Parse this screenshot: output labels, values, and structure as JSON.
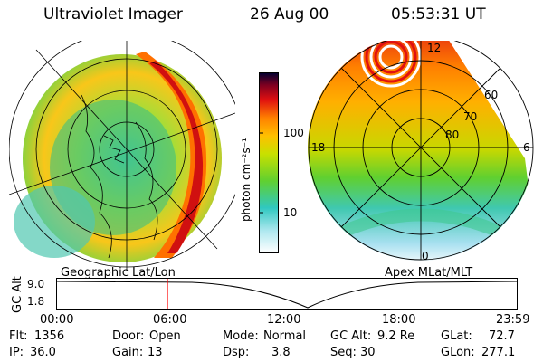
{
  "header": {
    "instrument": "Ultraviolet Imager",
    "date": "26 Aug 00",
    "time": "05:53:31 UT"
  },
  "colorbar": {
    "unit_label": "photon cm⁻²s⁻¹",
    "ticks": [
      "100",
      "10"
    ]
  },
  "panels": {
    "left_label": "Geographic Lat/Lon",
    "right_label": "Apex MLat/MLT",
    "polar_lat_labels": [
      "60",
      "70",
      "80"
    ],
    "polar_mlt_labels": [
      "12",
      "18",
      "6",
      "0"
    ]
  },
  "altitude_plot": {
    "ylabel": "GC Alt",
    "yticks": [
      "9.0",
      "1.8"
    ],
    "xticks": [
      "00:00",
      "06:00",
      "12:00",
      "18:00",
      "23:59"
    ]
  },
  "info": {
    "flt_label": "Flt:",
    "flt_value": "1356",
    "door_label": "Door:",
    "door_value": "Open",
    "mode_label": "Mode:",
    "mode_value": "Normal",
    "gcalt_label": "GC Alt:",
    "gcalt_value": "9.2 Re",
    "glat_label": "GLat:",
    "glat_value": "72.7",
    "ip_label": "IP:",
    "ip_value": "36.0",
    "gain_label": "Gain:",
    "gain_value": "13",
    "dsp_label": "Dsp:",
    "dsp_value": "3.8",
    "seq_label": "Seq:",
    "seq_value": "30",
    "glon_label": "GLon:",
    "glon_value": "277.1"
  },
  "colors": {
    "background": "#ffffff",
    "marker_line": "#ff0000",
    "scale": [
      "#ffffff",
      "#80e0f0",
      "#30c8c0",
      "#60d030",
      "#c8e000",
      "#ffc000",
      "#ff8000",
      "#e01010",
      "#800000",
      "#000030"
    ]
  }
}
